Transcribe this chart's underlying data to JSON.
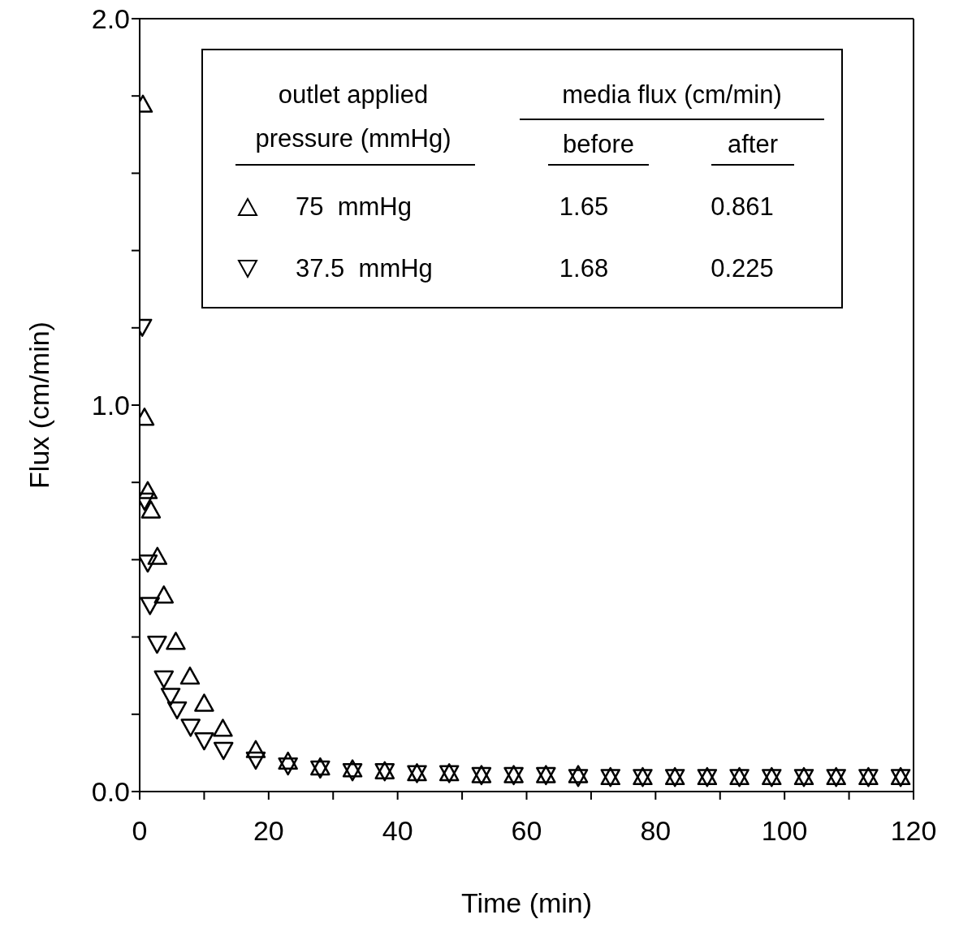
{
  "chart_data": {
    "type": "scatter",
    "xlabel": "Time  (min)",
    "ylabel": "Flux  (cm/min)",
    "xlim": [
      0,
      120
    ],
    "xticks": [
      0,
      {
        "value": 10,
        "label": null
      },
      20,
      {
        "value": 30,
        "label": null
      },
      40,
      {
        "value": 50,
        "label": null
      },
      60,
      {
        "value": 70,
        "label": null
      },
      80,
      {
        "value": 90,
        "label": null
      },
      100,
      {
        "value": 110,
        "label": null
      },
      120
    ],
    "ylim": [
      0,
      2
    ],
    "yticks": [
      {
        "value": 0,
        "label": "0.0"
      },
      {
        "value": 0.2,
        "label": null
      },
      {
        "value": 0.4,
        "label": null
      },
      {
        "value": 0.6,
        "label": null
      },
      {
        "value": 0.8,
        "label": null
      },
      {
        "value": 1,
        "label": "1.0"
      },
      {
        "value": 1.2,
        "label": null
      },
      {
        "value": 1.4,
        "label": null
      },
      {
        "value": 1.6,
        "label": null
      },
      {
        "value": 1.8,
        "label": null
      },
      {
        "value": 2,
        "label": "2.0"
      }
    ],
    "legend": "top",
    "series": [
      {
        "name": "75  mmHg",
        "color": "#000000",
        "marker": "triangle",
        "x": [
          0.5,
          0.75,
          1.25,
          1.75,
          2.75,
          3.75,
          5.6,
          7.8,
          10,
          12.9,
          18,
          23,
          28,
          33,
          38,
          43,
          48,
          53,
          58,
          63,
          68,
          73,
          78,
          83,
          88,
          93,
          98,
          103,
          108,
          113,
          118
        ],
        "values": [
          1.78,
          0.97,
          0.78,
          0.73,
          0.61,
          0.51,
          0.39,
          0.3,
          0.23,
          0.165,
          0.11,
          0.08,
          0.065,
          0.06,
          0.055,
          0.05,
          0.05,
          0.045,
          0.045,
          0.045,
          0.045,
          0.04,
          0.04,
          0.04,
          0.04,
          0.04,
          0.04,
          0.04,
          0.04,
          0.04,
          0.04
        ]
      },
      {
        "name": "37.5  mmHg",
        "color": "#000000",
        "marker": "triangle-down",
        "x": [
          0.4,
          0.75,
          1.25,
          1.6,
          2.7,
          3.75,
          4.8,
          5.8,
          7.9,
          10,
          13,
          18,
          23,
          28,
          33,
          38,
          43,
          48,
          53,
          58,
          63,
          68,
          73,
          78,
          83,
          88,
          93,
          98,
          103,
          108,
          113,
          118
        ],
        "values": [
          1.2,
          0.75,
          0.59,
          0.48,
          0.38,
          0.29,
          0.245,
          0.21,
          0.165,
          0.13,
          0.105,
          0.08,
          0.065,
          0.057,
          0.05,
          0.05,
          0.045,
          0.045,
          0.04,
          0.04,
          0.04,
          0.035,
          0.035,
          0.035,
          0.035,
          0.035,
          0.035,
          0.035,
          0.035,
          0.035,
          0.035,
          0.035
        ]
      }
    ],
    "annotations": [
      "outlet applied pressure (mmHg)",
      "media  flux  (cm/min)",
      "before",
      "after",
      "1.65",
      "0.861",
      "1.68",
      "0.225"
    ]
  }
}
